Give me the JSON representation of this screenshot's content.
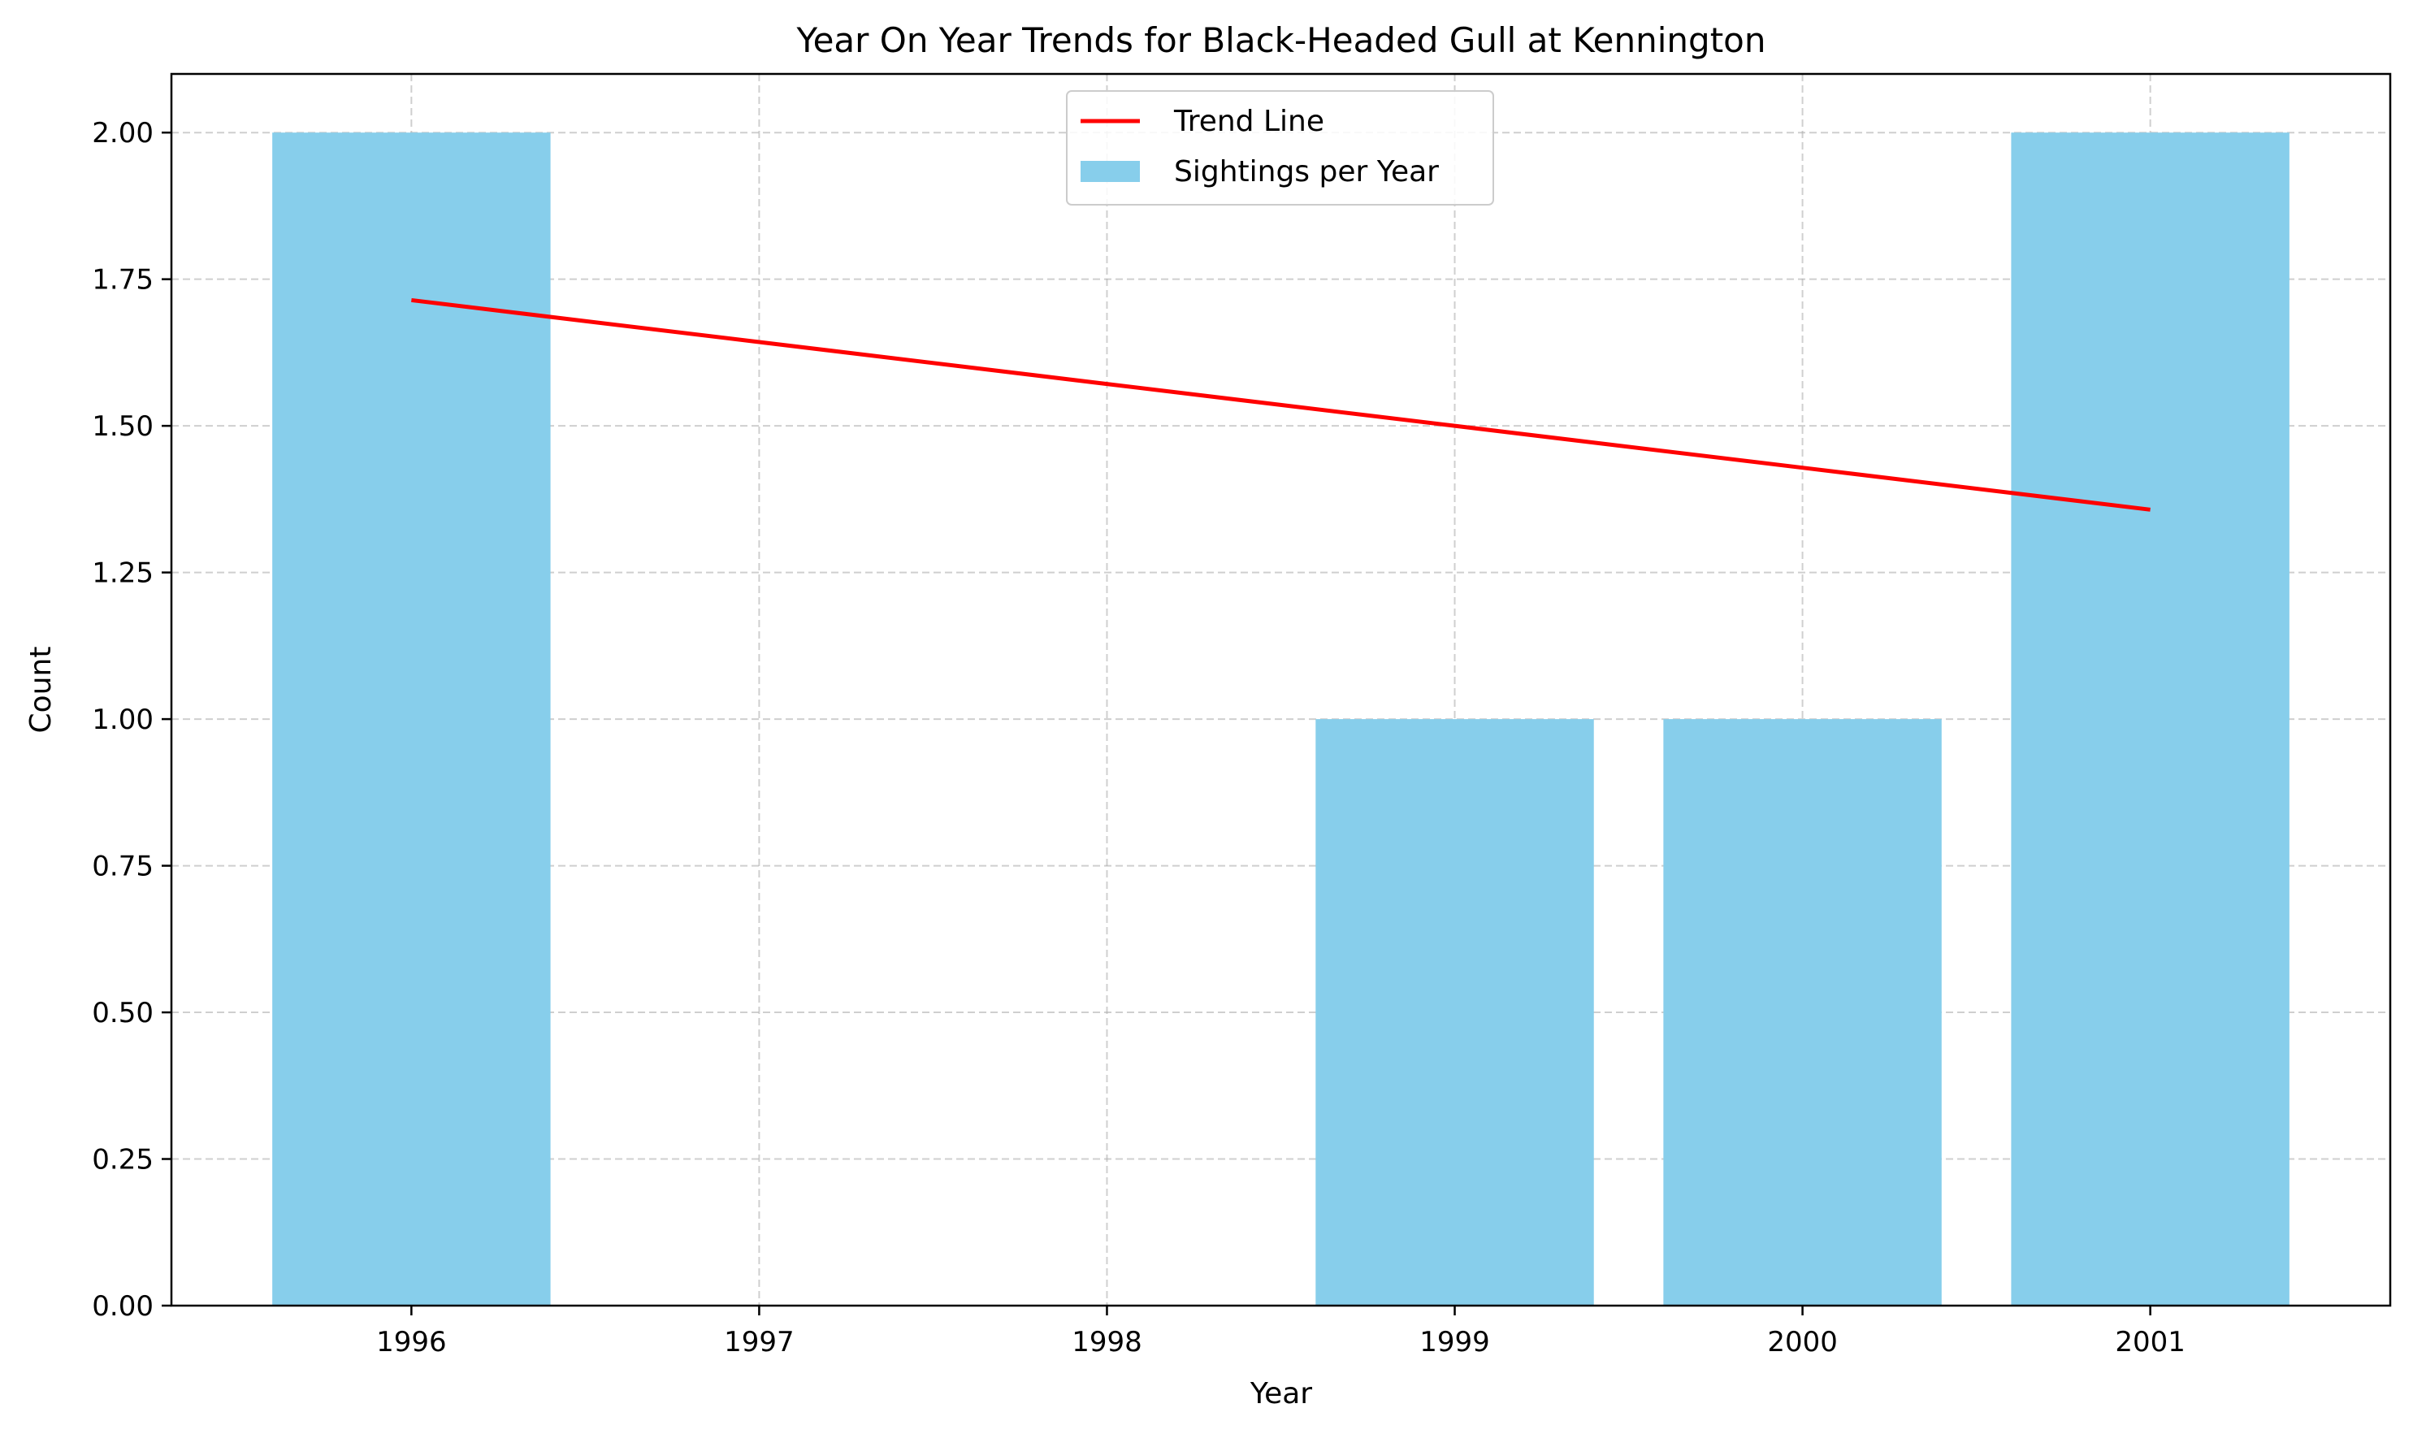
{
  "chart_data": {
    "type": "bar",
    "title": "Year On Year Trends for Black-Headed Gull at Kennington",
    "xlabel": "Year",
    "ylabel": "Count",
    "categories": [
      "1996",
      "1997",
      "1998",
      "1999",
      "2000",
      "2001"
    ],
    "x": [
      1996,
      1997,
      1998,
      1999,
      2000,
      2001
    ],
    "series": [
      {
        "name": "Sightings per Year",
        "type": "bar",
        "color": "#87CEEB",
        "values": [
          2,
          0,
          0,
          1,
          1,
          2
        ]
      },
      {
        "name": "Trend Line",
        "type": "line",
        "color": "#FF0000",
        "values": [
          1.7143,
          1.6429,
          1.5714,
          1.5,
          1.4286,
          1.3571
        ]
      }
    ],
    "xlim": [
      1995.31,
      2001.69
    ],
    "ylim": [
      0,
      2.1
    ],
    "yticks": [
      0,
      0.25,
      0.5,
      0.75,
      1.0,
      1.25,
      1.5,
      1.75,
      2.0
    ],
    "ytick_labels": [
      "0.00",
      "0.25",
      "0.50",
      "0.75",
      "1.00",
      "1.25",
      "1.50",
      "1.75",
      "2.00"
    ],
    "grid": true,
    "legend": {
      "position": "upper center",
      "entries": [
        "Trend Line",
        "Sightings per Year"
      ]
    }
  }
}
